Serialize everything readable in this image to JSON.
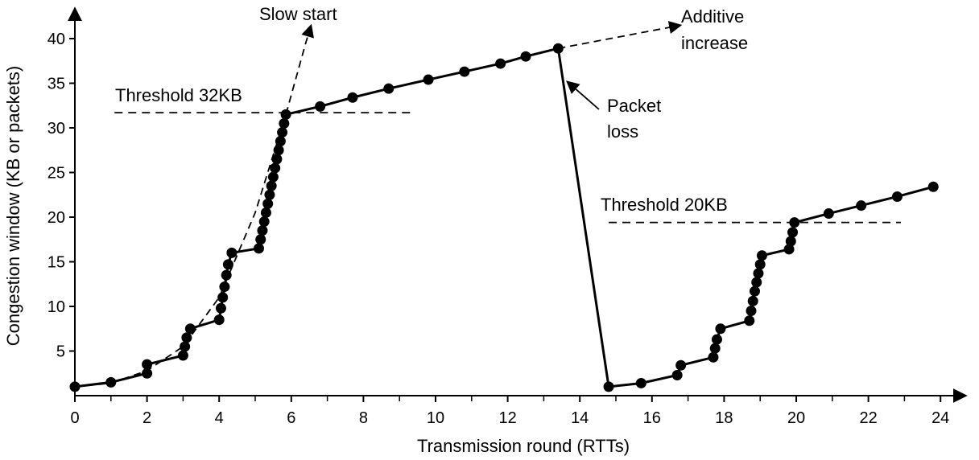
{
  "chart_data": {
    "type": "line",
    "xlabel": "Transmission round (RTTs)",
    "ylabel": "Congestion window (KB or packets)",
    "xlim": [
      0,
      24
    ],
    "ylim": [
      0,
      40
    ],
    "x_ticks": [
      0,
      2,
      4,
      6,
      8,
      10,
      12,
      14,
      16,
      18,
      20,
      22,
      24
    ],
    "y_ticks": [
      5,
      10,
      15,
      20,
      25,
      30,
      35,
      40
    ],
    "grid": false,
    "legend": "none",
    "series": [
      {
        "points": [
          [
            0,
            1
          ],
          [
            1,
            1.5
          ],
          [
            2,
            2.5
          ],
          [
            2,
            3.5
          ],
          [
            3,
            4.5
          ],
          [
            3.05,
            5.5
          ],
          [
            3.1,
            6.5
          ],
          [
            3.2,
            7.5
          ],
          [
            4,
            8.5
          ],
          [
            4.05,
            9.8
          ],
          [
            4.1,
            11
          ],
          [
            4.15,
            12.2
          ],
          [
            4.2,
            13.5
          ],
          [
            4.25,
            14.7
          ],
          [
            4.35,
            16
          ],
          [
            5.1,
            16.5
          ],
          [
            5.15,
            17.5
          ],
          [
            5.2,
            18.5
          ],
          [
            5.25,
            19.5
          ],
          [
            5.3,
            20.5
          ],
          [
            5.35,
            21.5
          ],
          [
            5.4,
            22.5
          ],
          [
            5.45,
            23.5
          ],
          [
            5.5,
            24.5
          ],
          [
            5.55,
            25.5
          ],
          [
            5.6,
            26.5
          ],
          [
            5.65,
            27.5
          ],
          [
            5.7,
            28.5
          ],
          [
            5.75,
            29.5
          ],
          [
            5.8,
            30.5
          ],
          [
            5.85,
            31.5
          ],
          [
            6.8,
            32.4
          ],
          [
            7.7,
            33.4
          ],
          [
            8.7,
            34.4
          ],
          [
            9.8,
            35.4
          ],
          [
            10.8,
            36.3
          ],
          [
            11.8,
            37.2
          ],
          [
            12.5,
            38
          ],
          [
            13.4,
            38.9
          ],
          [
            14.8,
            1
          ],
          [
            15.7,
            1.4
          ],
          [
            16.7,
            2.3
          ],
          [
            16.8,
            3.4
          ],
          [
            17.7,
            4.3
          ],
          [
            17.75,
            5.3
          ],
          [
            17.8,
            6.3
          ],
          [
            17.9,
            7.5
          ],
          [
            18.7,
            8.4
          ],
          [
            18.75,
            9.5
          ],
          [
            18.8,
            10.6
          ],
          [
            18.85,
            11.7
          ],
          [
            18.9,
            12.7
          ],
          [
            18.95,
            13.7
          ],
          [
            19.0,
            14.7
          ],
          [
            19.05,
            15.7
          ],
          [
            19.8,
            16.4
          ],
          [
            19.85,
            17.3
          ],
          [
            19.9,
            18.3
          ],
          [
            19.95,
            19.4
          ],
          [
            20.9,
            20.4
          ],
          [
            21.8,
            21.3
          ],
          [
            22.8,
            22.3
          ],
          [
            23.8,
            23.4
          ]
        ]
      }
    ],
    "slow_start_curve": [
      [
        0,
        1
      ],
      [
        1,
        1.4
      ],
      [
        2,
        2.8
      ],
      [
        3,
        5.5
      ],
      [
        4,
        11
      ],
      [
        5,
        20.5
      ],
      [
        5.85,
        31.5
      ],
      [
        6.4,
        39.5
      ],
      [
        6.55,
        41.5
      ]
    ],
    "additive_increase_line": [
      [
        13.4,
        38.9
      ],
      [
        16.8,
        41.5
      ]
    ],
    "thresholds": [
      {
        "label": "Threshold 32KB",
        "y": 31.7,
        "x_start": 1.1,
        "x_end": 9.4
      },
      {
        "label": "Threshold 20KB",
        "y": 19.4,
        "x_start": 14.8,
        "x_end": 22.9
      }
    ],
    "annotations": {
      "slow_start": "Slow start",
      "additive_line1": "Additive",
      "additive_line2": "increase",
      "packet_line1": "Packet",
      "packet_line2": "loss"
    },
    "packet_loss_arrow_target": [
      13.6,
      35.2
    ]
  }
}
